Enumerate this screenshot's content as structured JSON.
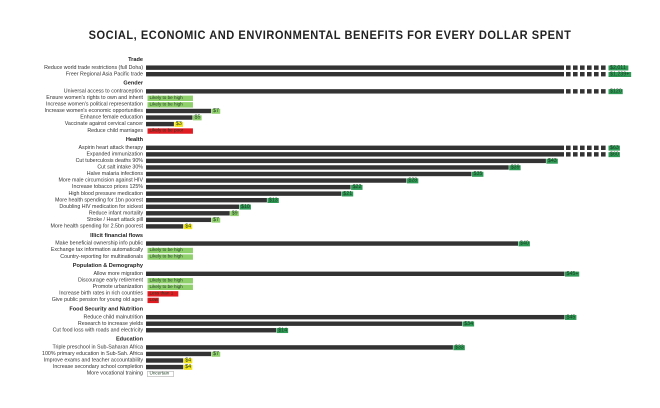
{
  "title": "SOCIAL, ECONOMIC AND ENVIRONMENTAL BENEFITS FOR EVERY DOLLAR SPENT",
  "colors": {
    "bar": "#333333",
    "high": "#2e9a55",
    "mid": "#8fcf6c",
    "low": "#f1e31c",
    "poor": "#e11b22"
  },
  "chart_data": {
    "type": "bar",
    "orientation": "horizontal",
    "title": "SOCIAL, ECONOMIC AND ENVIRONMENTAL BENEFITS FOR EVERY DOLLAR SPENT",
    "sections": [
      {
        "name": "Trade",
        "items": [
          {
            "label": "Reduce world trade restrictions (full Doha)",
            "value": 2011,
            "value_label": "$2,011",
            "broken": true,
            "rating": "high"
          },
          {
            "label": "Freer Regional Asia Pacific trade",
            "value": 1239,
            "value_label": "$1,239+",
            "broken": true,
            "rating": "high"
          }
        ]
      },
      {
        "name": "Gender",
        "items": [
          {
            "label": "Universal access to contraception",
            "value": 120,
            "value_label": "$120",
            "broken": true,
            "rating": "high"
          },
          {
            "label": "Ensure women's rights to own and inherit",
            "value": null,
            "value_label": "Likely to be high",
            "rating": "mid"
          },
          {
            "label": "Increase women's political representation",
            "value": null,
            "value_label": "Likely to be high",
            "rating": "mid"
          },
          {
            "label": "Increase women's economic opportunities",
            "value": 7,
            "value_label": "$7",
            "rating": "mid"
          },
          {
            "label": "Enhance female education",
            "value": 5,
            "value_label": "$5",
            "rating": "mid"
          },
          {
            "label": "Vaccinate against cervical cancer",
            "value": 3,
            "value_label": "$3",
            "rating": "low"
          },
          {
            "label": "Reduce child marriages",
            "value": null,
            "value_label": "Likely to be poor",
            "rating": "poor"
          }
        ]
      },
      {
        "name": "Health",
        "items": [
          {
            "label": "Aspirin heart attack therapy",
            "value": 63,
            "value_label": "$63",
            "broken": true,
            "rating": "high"
          },
          {
            "label": "Expanded immunization",
            "value": 60,
            "value_label": "$60",
            "broken": true,
            "rating": "high"
          },
          {
            "label": "Cut tuberculosis deaths 90%",
            "value": 43,
            "value_label": "$43",
            "rating": "high"
          },
          {
            "label": "Cut salt intake 30%",
            "value": 39,
            "value_label": "$39",
            "rating": "high"
          },
          {
            "label": "Halve malaria infections",
            "value": 35,
            "value_label": "$35",
            "rating": "high"
          },
          {
            "label": "More male circumcision against HIV",
            "value": 28,
            "value_label": "$28",
            "rating": "high"
          },
          {
            "label": "Increase tobacco prices 125%",
            "value": 22,
            "value_label": "$22",
            "rating": "high"
          },
          {
            "label": "High blood pressure medication",
            "value": 21,
            "value_label": "$21",
            "rating": "high"
          },
          {
            "label": "More health spending for 1bn poorest",
            "value": 13,
            "value_label": "$13",
            "rating": "high"
          },
          {
            "label": "Doubling HIV medication for sickest",
            "value": 10,
            "value_label": "$10",
            "rating": "high"
          },
          {
            "label": "Reduce infant mortality",
            "value": 9,
            "value_label": "$9",
            "rating": "mid"
          },
          {
            "label": "Stroke / Heart attack pill",
            "value": 7,
            "value_label": "$7",
            "rating": "mid"
          },
          {
            "label": "More health spending for 2.5bn poorest",
            "value": 4,
            "value_label": "$4",
            "rating": "low"
          }
        ]
      },
      {
        "name": "Illicit financial flows",
        "items": [
          {
            "label": "Make beneficial ownership info public",
            "value": 40,
            "value_label": "$40",
            "rating": "high"
          },
          {
            "label": "Exchange tax information automatically",
            "value": null,
            "value_label": "Likely to be high",
            "rating": "mid"
          },
          {
            "label": "Country-reporting for multinationals",
            "value": null,
            "value_label": "Likely to be high",
            "rating": "mid"
          }
        ]
      },
      {
        "name": "Population & Demography",
        "items": [
          {
            "label": "Allow more migration",
            "value": 45,
            "value_label": "$45+",
            "rating": "high"
          },
          {
            "label": "Discourage early retirement",
            "value": null,
            "value_label": "Likely to be high",
            "rating": "mid"
          },
          {
            "label": "Promote urbanization",
            "value": null,
            "value_label": "Likely to be high",
            "rating": "mid"
          },
          {
            "label": "Increase birth rates in rich countries",
            "value": null,
            "value_label": "Less than 1",
            "rating": "poor"
          },
          {
            "label": "Give public pension for young old ages",
            "value": null,
            "value_label": "Low",
            "rating": "poor"
          }
        ]
      },
      {
        "name": "Food Security and Nutrition",
        "items": [
          {
            "label": "Reduce child malnutrition",
            "value": 45,
            "value_label": "$45",
            "rating": "high"
          },
          {
            "label": "Research to increase yields",
            "value": 34,
            "value_label": "$34",
            "rating": "high"
          },
          {
            "label": "Cut food loss with roads and electricity",
            "value": 14,
            "value_label": "$14",
            "rating": "high"
          }
        ]
      },
      {
        "name": "Education",
        "items": [
          {
            "label": "Triple preschool in Sub-Saharan Africa",
            "value": 33,
            "value_label": "$33",
            "rating": "high"
          },
          {
            "label": "100% primary education in Sub-Sah. Africa",
            "value": 7,
            "value_label": "$7",
            "rating": "mid"
          },
          {
            "label": "Improve exams and teacher accountability",
            "value": 4,
            "value_label": "$4",
            "rating": "low"
          },
          {
            "label": "Increase secondary school completion",
            "value": 4,
            "value_label": "$4",
            "rating": "low"
          },
          {
            "label": "More vocational training",
            "value": null,
            "value_label": "Uncertain",
            "rating": "uncertain"
          }
        ]
      }
    ]
  }
}
